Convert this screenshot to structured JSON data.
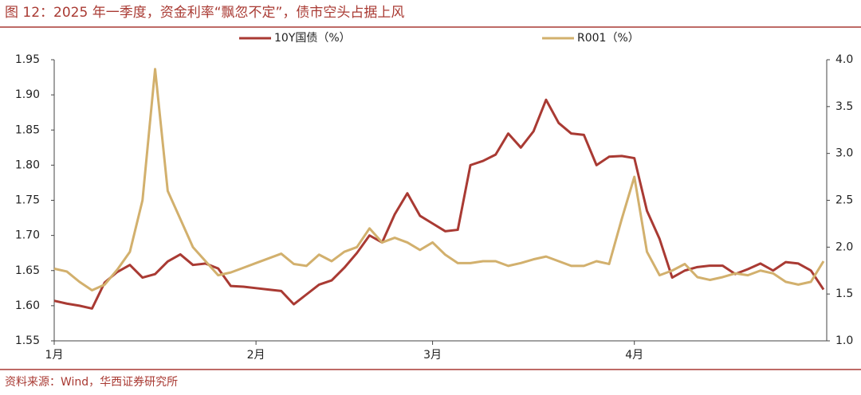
{
  "chart_data": {
    "type": "line",
    "title": "图 12：2025 年一季度，资金利率“飘忽不定”，债市空头占据上风",
    "source": "资料来源：Wind，华西证券研究所",
    "categories": [
      "1月",
      null,
      null,
      null,
      null,
      null,
      null,
      null,
      null,
      null,
      null,
      null,
      null,
      null,
      null,
      null,
      "2月",
      null,
      null,
      null,
      null,
      null,
      null,
      null,
      null,
      null,
      null,
      null,
      null,
      null,
      "3月",
      null,
      null,
      null,
      null,
      null,
      null,
      null,
      null,
      null,
      null,
      null,
      null,
      null,
      null,
      null,
      "4月",
      null,
      null,
      null,
      null,
      null,
      null,
      null,
      null,
      null,
      null,
      null,
      null,
      null,
      null,
      null
    ],
    "ylim": [
      1.55,
      1.95
    ],
    "yticks": [
      1.55,
      {
        "value": 1.6,
        "label": "1.60"
      },
      1.65,
      {
        "value": 1.7,
        "label": "1.70"
      },
      1.75,
      {
        "value": 1.8,
        "label": "1.80"
      },
      1.85,
      {
        "value": 1.9,
        "label": "1.90"
      },
      1.95
    ],
    "y2lim": [
      1.0,
      4.0
    ],
    "y2ticks": [
      {
        "value": 1.0,
        "label": "1.0"
      },
      1.5,
      {
        "value": 2.0,
        "label": "2.0"
      },
      2.5,
      {
        "value": 3.0,
        "label": "3.0"
      },
      3.5,
      {
        "value": 4.0,
        "label": "4.0"
      }
    ],
    "legend": "top",
    "series": [
      {
        "name": "10Y国债（%）",
        "color": "#a93a33",
        "values": [
          1.607,
          1.603,
          1.6,
          1.596,
          1.633,
          1.648,
          1.658,
          1.64,
          1.645,
          1.663,
          1.673,
          1.658,
          1.66,
          1.653,
          1.628,
          1.627,
          1.625,
          1.623,
          1.621,
          1.602,
          1.616,
          1.63,
          1.636,
          1.654,
          1.675,
          1.7,
          1.69,
          1.73,
          1.76,
          1.728,
          1.717,
          1.706,
          1.708,
          1.8,
          1.806,
          1.815,
          1.845,
          1.825,
          1.848,
          1.893,
          1.86,
          1.845,
          1.843,
          1.8,
          1.812,
          1.813,
          1.81,
          1.735,
          1.695,
          1.64,
          1.65,
          1.655,
          1.657,
          1.657,
          1.645,
          1.652,
          1.66,
          1.65,
          1.662,
          1.66,
          1.65,
          1.623
        ]
      },
      {
        "name": "R001（%）",
        "color": "#d2b06d",
        "axis": "y2",
        "values": [
          1.77,
          1.74,
          1.63,
          1.54,
          1.6,
          1.76,
          1.95,
          2.5,
          3.9,
          2.6,
          2.3,
          2.0,
          1.85,
          1.7,
          1.73,
          1.78,
          1.83,
          1.88,
          1.93,
          1.82,
          1.8,
          1.92,
          1.85,
          1.95,
          2.0,
          2.2,
          2.05,
          2.1,
          2.05,
          1.97,
          2.05,
          1.92,
          1.83,
          1.83,
          1.85,
          1.85,
          1.8,
          1.83,
          1.87,
          1.9,
          1.85,
          1.8,
          1.8,
          1.85,
          1.82,
          2.3,
          2.75,
          1.95,
          1.7,
          1.75,
          1.82,
          1.68,
          1.65,
          1.68,
          1.72,
          1.7,
          1.75,
          1.72,
          1.63,
          1.6,
          1.63,
          1.85
        ]
      }
    ]
  }
}
